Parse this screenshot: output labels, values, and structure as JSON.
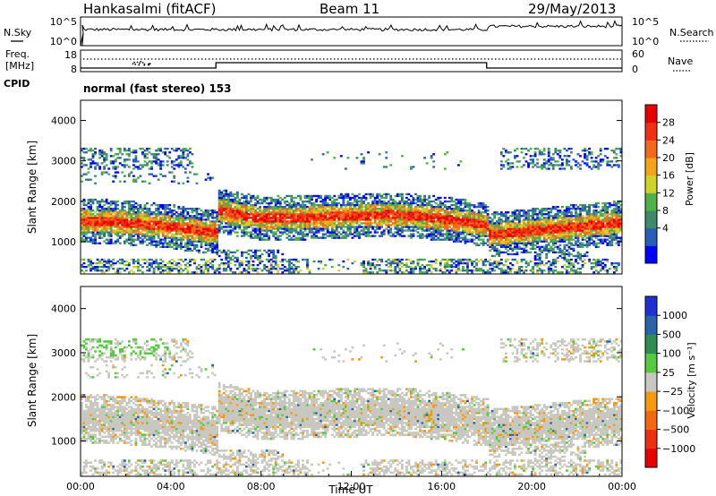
{
  "header": {
    "station": "Hankasalmi (fitACF)",
    "beam": "Beam 11",
    "date": "29/May/2013"
  },
  "nsky": {
    "label": "N.Sky",
    "ticks_left": [
      "10^5",
      "10^0"
    ],
    "right_label": "N.Search",
    "ticks_right": [
      "10^5",
      "10^0"
    ]
  },
  "freq": {
    "label_line1": "Freq.",
    "label_line2": "[MHz]",
    "ticks_left": [
      "18",
      "8"
    ],
    "right_label": "Nave",
    "ticks_right": [
      "60",
      "0"
    ],
    "steps": [
      {
        "t0": 0.0,
        "t1": 6.0,
        "level": "low"
      },
      {
        "t0": 6.0,
        "t1": 18.0,
        "level": "high"
      },
      {
        "t0": 18.0,
        "t1": 24.0,
        "level": "low"
      }
    ]
  },
  "cpid": {
    "label": "CPID",
    "text": "normal (fast stereo) 153"
  },
  "chart_data": [
    {
      "type": "heatmap",
      "panel": "power",
      "ylabel": "Slant Range [km]",
      "xlim": [
        0,
        24
      ],
      "ylim": [
        200,
        4500
      ],
      "yticks": [
        "1000",
        "2000",
        "3000",
        "4000"
      ],
      "colorbar_label": "Power [dB]",
      "colorbar_ticks": [
        "28",
        "24",
        "20",
        "16",
        "12",
        "8",
        "4"
      ],
      "colorbar_colors": [
        "#0000ff",
        "#2a5db8",
        "#3f8a6b",
        "#4fb04a",
        "#cfd22a",
        "#f6a31c",
        "#f46a1c",
        "#f03010",
        "#e80000"
      ],
      "main_echo_band_center_km": [
        {
          "t": 0,
          "r": 1500
        },
        {
          "t": 2,
          "r": 1450
        },
        {
          "t": 4,
          "r": 1350
        },
        {
          "t": 6,
          "r": 1200
        },
        {
          "t": 6.1,
          "r": 1750
        },
        {
          "t": 8,
          "r": 1550
        },
        {
          "t": 10,
          "r": 1580
        },
        {
          "t": 12,
          "r": 1620
        },
        {
          "t": 14,
          "r": 1650
        },
        {
          "t": 16,
          "r": 1550
        },
        {
          "t": 18,
          "r": 1400
        },
        {
          "t": 18.1,
          "r": 1150
        },
        {
          "t": 20,
          "r": 1250
        },
        {
          "t": 22,
          "r": 1350
        },
        {
          "t": 24,
          "r": 1450
        }
      ]
    },
    {
      "type": "heatmap",
      "panel": "velocity",
      "ylabel": "Slant Range [km]",
      "xlabel": "Time UT",
      "xlim": [
        0,
        24
      ],
      "ylim": [
        200,
        4500
      ],
      "yticks": [
        "1000",
        "2000",
        "3000",
        "4000"
      ],
      "xticks": [
        "00:00",
        "04:00",
        "08:00",
        "12:00",
        "16:00",
        "20:00",
        "00:00"
      ],
      "colorbar_label": "Velocity [m s⁻¹]",
      "colorbar_ticks": [
        "1000",
        "500",
        "100",
        "25",
        "−25",
        "−100",
        "−500",
        "−1000"
      ],
      "colorbar_colors": [
        "#1f2fd0",
        "#2b63a8",
        "#2d8d53",
        "#56c93e",
        "#c8c8c0",
        "#f59a0c",
        "#f26a0e",
        "#ee3010",
        "#e80000"
      ]
    }
  ]
}
